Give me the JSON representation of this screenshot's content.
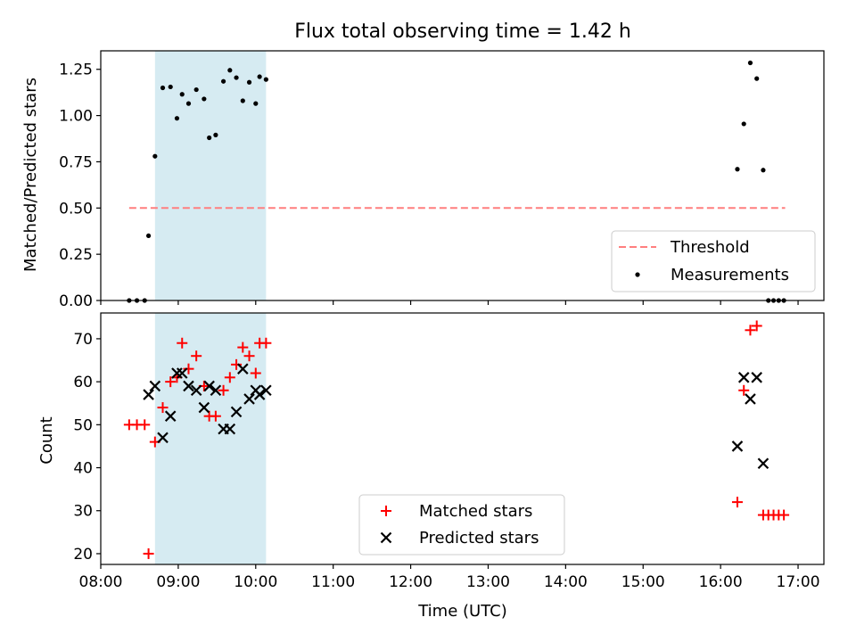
{
  "chart_data": [
    {
      "type": "scatter",
      "title": "Flux total observing time = 1.42 h",
      "xlabel": "",
      "ylabel": "Matched/Predicted stars",
      "xlim": [
        "08:00",
        "17:20"
      ],
      "ylim": [
        0,
        1.35
      ],
      "yticks": [
        0.0,
        0.25,
        0.5,
        0.75,
        1.0,
        1.25
      ],
      "ytick_labels": [
        "0.00",
        "0.25",
        "0.50",
        "0.75",
        "1.00",
        "1.25"
      ],
      "highlight_span": [
        "08:42",
        "10:08"
      ],
      "highlight_color": "#add8e6",
      "threshold": {
        "name": "Threshold",
        "value": 0.5,
        "x_range": [
          "08:22",
          "16:50"
        ],
        "color": "#ff7f7f",
        "style": "dashed"
      },
      "series": [
        {
          "name": "Measurements",
          "marker": "dot",
          "color": "#000000",
          "points": [
            [
              "08:22",
              0.0
            ],
            [
              "08:28",
              0.0
            ],
            [
              "08:34",
              0.0
            ],
            [
              "08:37",
              0.35
            ],
            [
              "08:42",
              0.78
            ],
            [
              "08:48",
              1.15
            ],
            [
              "08:54",
              1.155
            ],
            [
              "08:59",
              0.985
            ],
            [
              "09:03",
              1.115
            ],
            [
              "09:08",
              1.065
            ],
            [
              "09:14",
              1.14
            ],
            [
              "09:20",
              1.09
            ],
            [
              "09:24",
              0.88
            ],
            [
              "09:29",
              0.895
            ],
            [
              "09:35",
              1.185
            ],
            [
              "09:40",
              1.245
            ],
            [
              "09:45",
              1.205
            ],
            [
              "09:50",
              1.08
            ],
            [
              "09:55",
              1.18
            ],
            [
              "10:00",
              1.065
            ],
            [
              "10:03",
              1.21
            ],
            [
              "10:08",
              1.195
            ],
            [
              "16:13",
              0.71
            ],
            [
              "16:18",
              0.955
            ],
            [
              "16:23",
              1.285
            ],
            [
              "16:28",
              1.2
            ],
            [
              "16:33",
              0.705
            ],
            [
              "16:37",
              0.0
            ],
            [
              "16:41",
              0.0
            ],
            [
              "16:45",
              0.0
            ],
            [
              "16:49",
              0.0
            ]
          ]
        }
      ],
      "legend": {
        "position": "lower right",
        "entries": [
          "Threshold",
          "Measurements"
        ]
      }
    },
    {
      "type": "scatter",
      "title": "",
      "xlabel": "Time (UTC)",
      "ylabel": "Count",
      "xlim": [
        "08:00",
        "17:20"
      ],
      "xticks": [
        "08:00",
        "09:00",
        "10:00",
        "11:00",
        "12:00",
        "13:00",
        "14:00",
        "15:00",
        "16:00",
        "17:00"
      ],
      "ylim": [
        17.5,
        76
      ],
      "yticks": [
        20,
        30,
        40,
        50,
        60,
        70
      ],
      "highlight_span": [
        "08:42",
        "10:08"
      ],
      "highlight_color": "#add8e6",
      "series": [
        {
          "name": "Matched stars",
          "marker": "+",
          "color": "#ff0000",
          "points": [
            [
              "08:22",
              50
            ],
            [
              "08:28",
              50
            ],
            [
              "08:34",
              50
            ],
            [
              "08:37",
              20
            ],
            [
              "08:42",
              46
            ],
            [
              "08:48",
              54
            ],
            [
              "08:54",
              60
            ],
            [
              "08:59",
              61
            ],
            [
              "09:03",
              69
            ],
            [
              "09:08",
              63
            ],
            [
              "09:14",
              66
            ],
            [
              "09:20",
              59
            ],
            [
              "09:24",
              52
            ],
            [
              "09:29",
              52
            ],
            [
              "09:35",
              58
            ],
            [
              "09:40",
              61
            ],
            [
              "09:45",
              64
            ],
            [
              "09:50",
              68
            ],
            [
              "09:55",
              66
            ],
            [
              "10:00",
              62
            ],
            [
              "10:03",
              69
            ],
            [
              "10:08",
              69
            ],
            [
              "16:13",
              32
            ],
            [
              "16:18",
              58
            ],
            [
              "16:23",
              72
            ],
            [
              "16:28",
              73
            ],
            [
              "16:33",
              29
            ],
            [
              "16:37",
              29
            ],
            [
              "16:41",
              29
            ],
            [
              "16:45",
              29
            ],
            [
              "16:49",
              29
            ]
          ]
        },
        {
          "name": "Predicted stars",
          "marker": "x",
          "color": "#000000",
          "points": [
            [
              "08:37",
              57
            ],
            [
              "08:42",
              59
            ],
            [
              "08:48",
              47
            ],
            [
              "08:54",
              52
            ],
            [
              "08:59",
              62
            ],
            [
              "09:03",
              62
            ],
            [
              "09:08",
              59
            ],
            [
              "09:14",
              58
            ],
            [
              "09:20",
              54
            ],
            [
              "09:24",
              59
            ],
            [
              "09:29",
              58
            ],
            [
              "09:35",
              49
            ],
            [
              "09:40",
              49
            ],
            [
              "09:45",
              53
            ],
            [
              "09:50",
              63
            ],
            [
              "09:55",
              56
            ],
            [
              "10:00",
              58
            ],
            [
              "10:03",
              57
            ],
            [
              "10:08",
              58
            ],
            [
              "16:13",
              45
            ],
            [
              "16:18",
              61
            ],
            [
              "16:23",
              56
            ],
            [
              "16:28",
              61
            ],
            [
              "16:33",
              41
            ]
          ]
        }
      ],
      "legend": {
        "position": "lower center",
        "entries": [
          "Matched stars",
          "Predicted stars"
        ]
      }
    }
  ]
}
